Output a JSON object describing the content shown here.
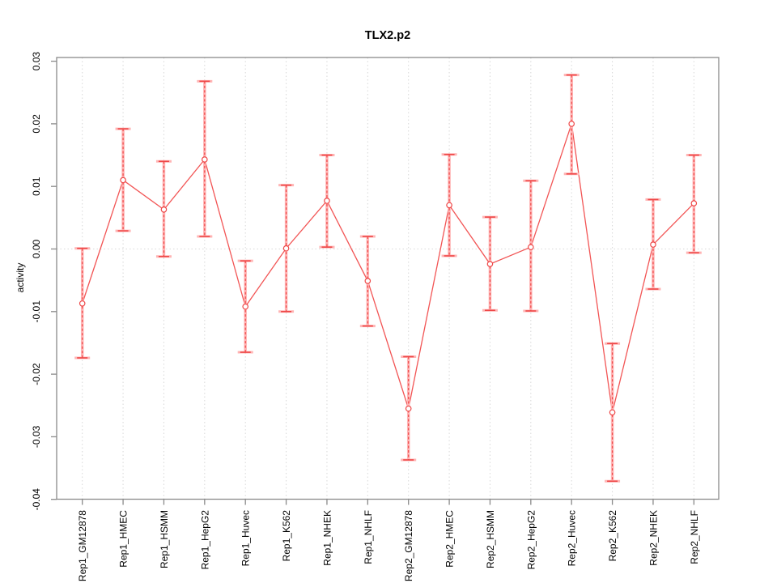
{
  "figure": {
    "background": "#ffffff"
  },
  "chart_data": {
    "type": "scatter",
    "subtype": "point-with-error-bars",
    "title": "TLX2.p2",
    "xlabel": "",
    "ylabel": "activity",
    "categories": [
      "Rep1_GM12878",
      "Rep1_HMEC",
      "Rep1_HSMM",
      "Rep1_HepG2",
      "Rep1_Huvec",
      "Rep1_K562",
      "Rep1_NHEK",
      "Rep1_NHLF",
      "Rep2_GM12878",
      "Rep2_HMEC",
      "Rep2_HSMM",
      "Rep2_HepG2",
      "Rep2_Huvec",
      "Rep2_K562",
      "Rep2_NHEK",
      "Rep2_NHLF"
    ],
    "series": [
      {
        "name": "activity",
        "values": [
          -0.0087,
          0.011,
          0.0063,
          0.0143,
          -0.0092,
          0.0001,
          0.0077,
          -0.0051,
          -0.0255,
          0.007,
          -0.0024,
          0.0003,
          0.02,
          -0.0261,
          0.0007,
          0.0073
        ],
        "upper": [
          0.0001,
          0.0192,
          0.014,
          0.0268,
          -0.0019,
          0.0102,
          0.015,
          0.002,
          -0.0172,
          0.0151,
          0.0051,
          0.0109,
          0.0278,
          -0.0151,
          0.0079,
          0.015
        ],
        "lower": [
          -0.0174,
          0.0029,
          -0.0012,
          0.002,
          -0.0165,
          -0.01,
          0.0003,
          -0.0123,
          -0.0337,
          -0.0011,
          -0.0098,
          -0.0099,
          0.012,
          -0.0371,
          -0.0064,
          -0.0006
        ]
      }
    ],
    "ylim": [
      -0.04,
      0.03
    ],
    "yticks": {
      "values": [
        0.03,
        0.02,
        0.01,
        0.0,
        -0.01,
        -0.02,
        -0.03,
        -0.04
      ],
      "labels": [
        "0.03",
        "0.02",
        "0.01",
        "0.00",
        "-0.01",
        "-0.02",
        "-0.03",
        "-0.04"
      ]
    },
    "grid": {
      "vertical_per_category": true,
      "horizontal_at_zero": true,
      "style": "dotted"
    },
    "legend": null,
    "colors": {
      "point": "#ee4747",
      "line": "#f25555",
      "error_bar_dashed": "#ee4747",
      "error_bar_thick": "#ffb4b4",
      "grid": "#d8d8d8",
      "axis": "#8a8a8a",
      "text": "#000000"
    }
  }
}
